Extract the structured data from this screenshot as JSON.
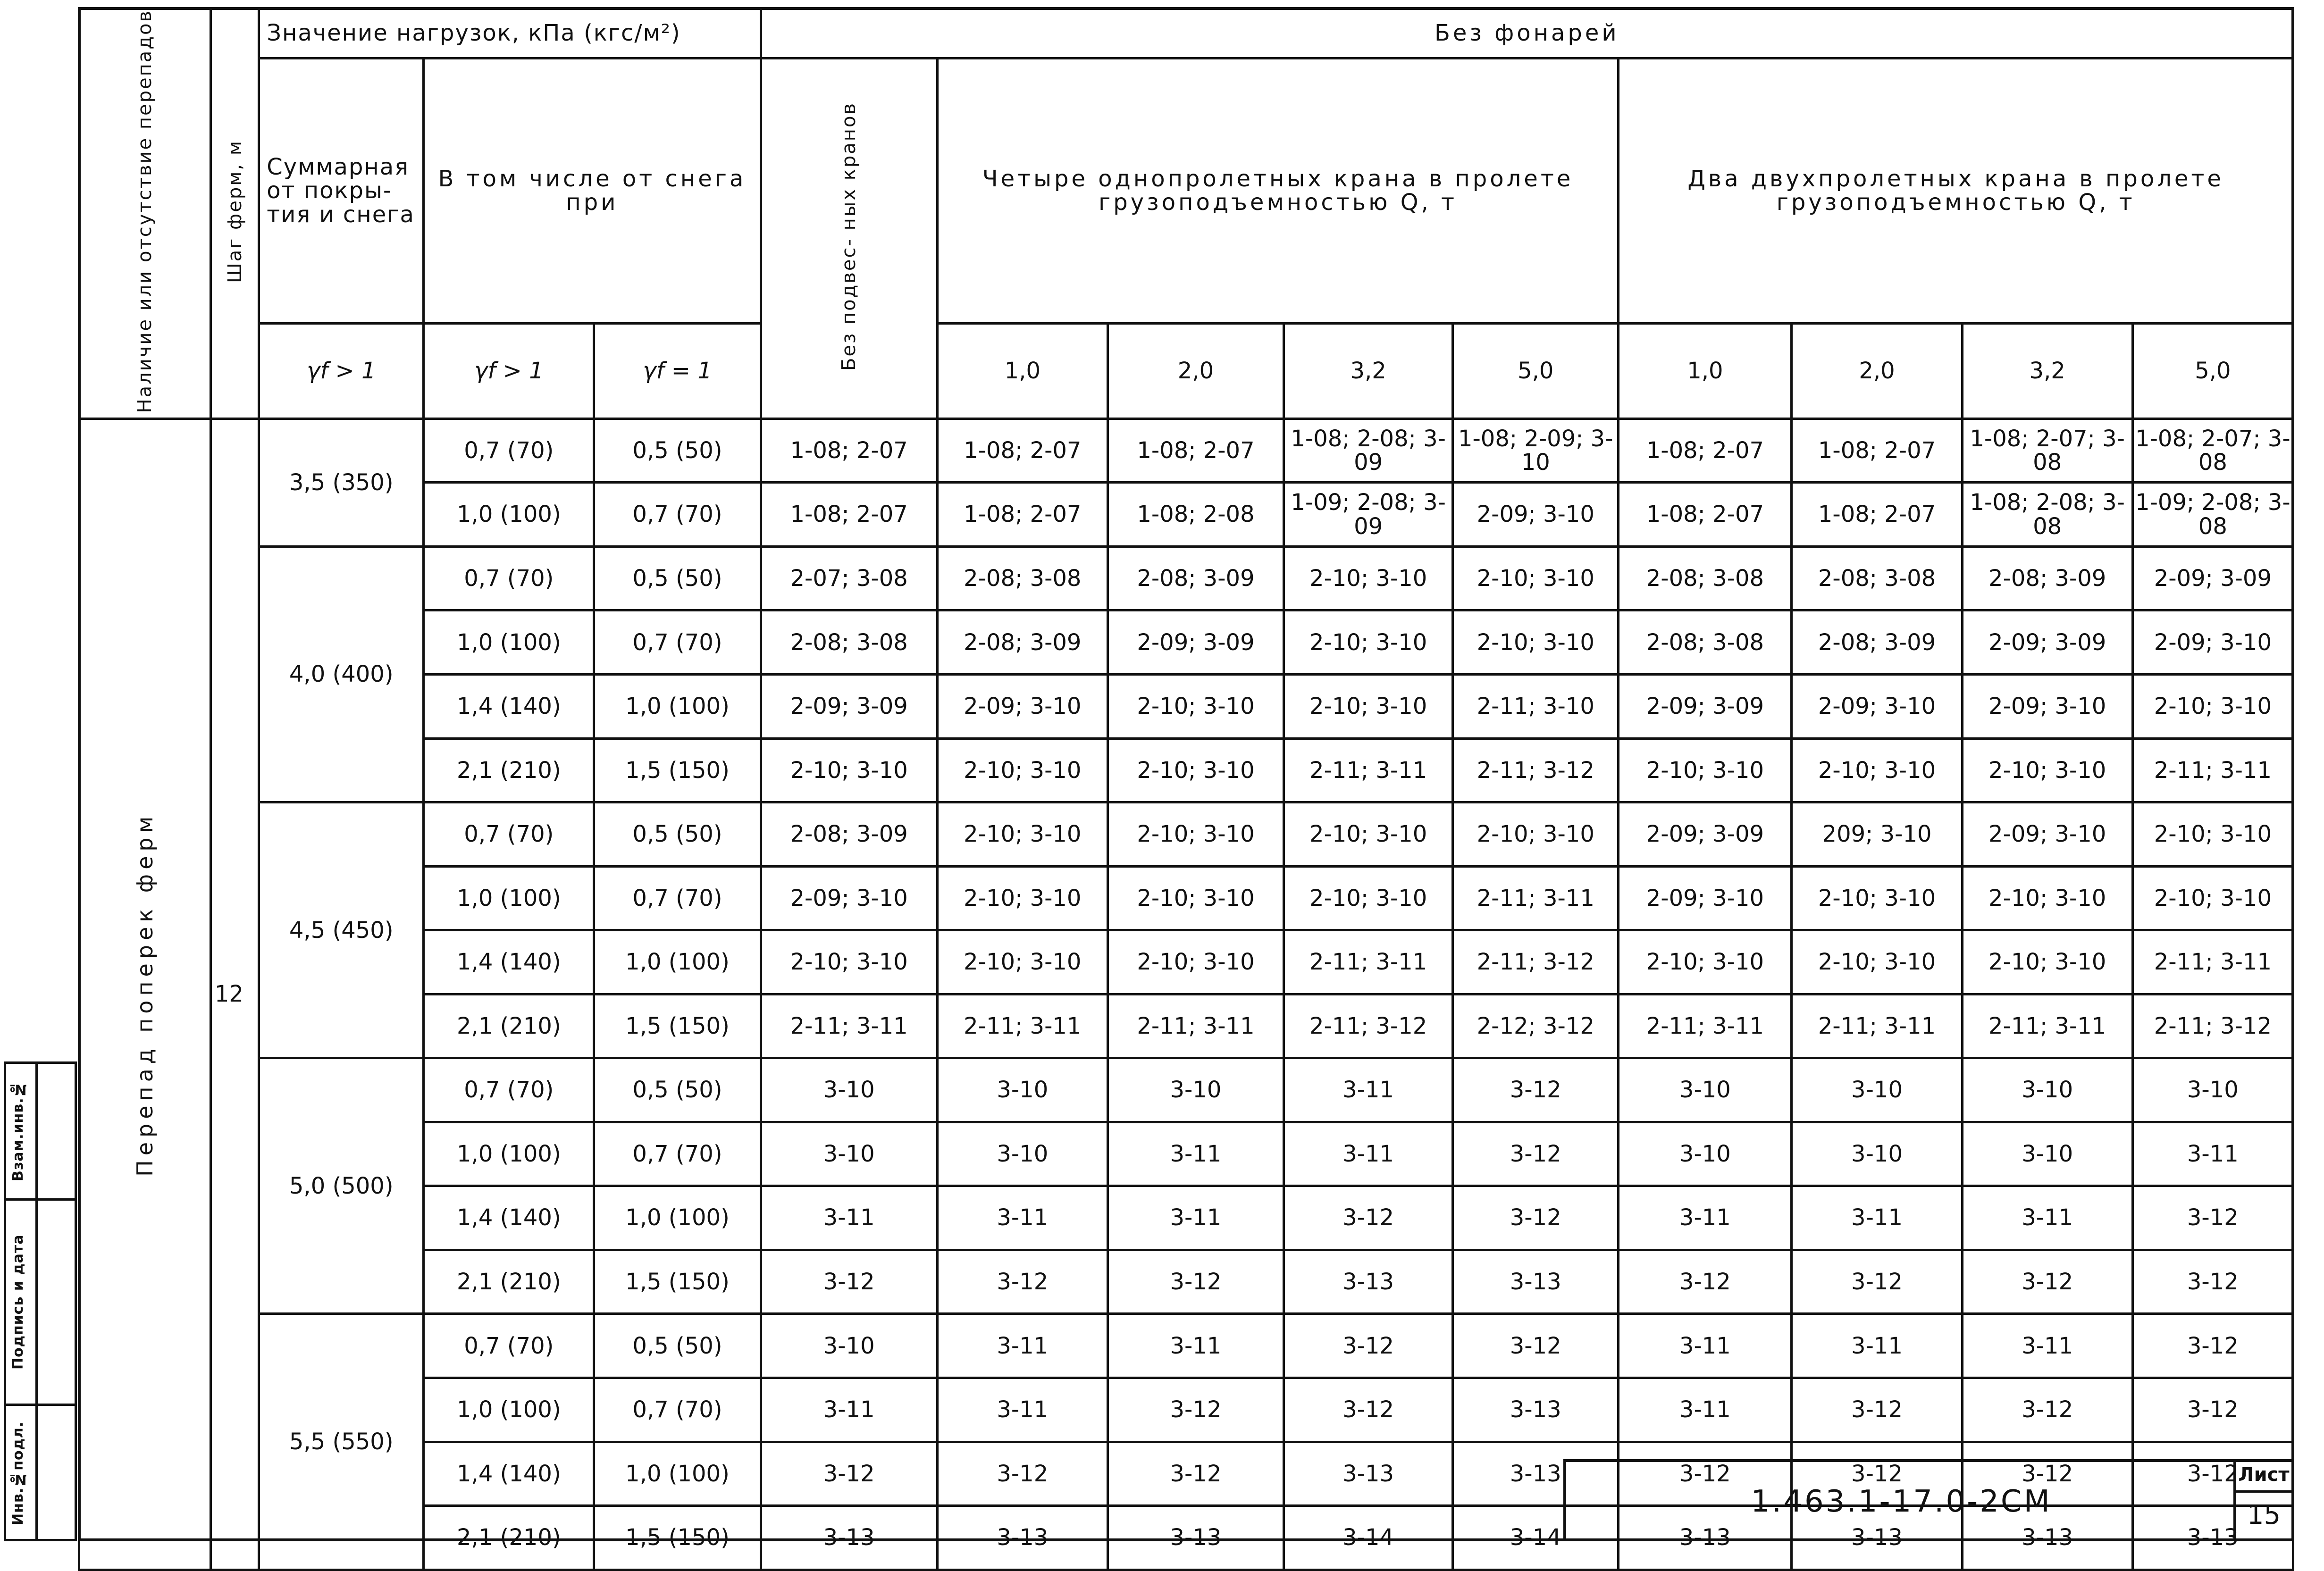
{
  "side_stamp": {
    "inv_podl": "Инв.№подл.",
    "podpis_data": "Подпись и дата",
    "vzam_inv": "Взам.инв.№"
  },
  "header": {
    "col_presence": "Наличие или отсутствие перепадов",
    "col_step": "Шаг ферм, м",
    "loads_title": "Значение нагрузок, кПа (кгс/м²)",
    "no_lanterns": "Без фонарей",
    "total": "Суммарная от покры- тия и снега",
    "incl_snow": "В том числе от снега при",
    "gamma_total": "γf > 1",
    "gamma_snow_gt": "γf > 1",
    "gamma_snow_eq": "γf = 1",
    "no_cranes": "Без подвес- ных кранов",
    "group_four": "Четыре однопролетных крана в пролете грузоподъемностью Q, т",
    "group_two": "Два двухпролетных крана в пролете грузоподъемностью Q, т",
    "capacities_four": [
      "1,0",
      "2,0",
      "3,2",
      "5,0"
    ],
    "capacities_two": [
      "1,0",
      "2,0",
      "3,2",
      "5,0"
    ]
  },
  "table": {
    "row_label": "Перепад поперек ферм",
    "step": "12",
    "groups": [
      {
        "total": "3,5 (350)",
        "rows": [
          {
            "gt": "0,7 (70)",
            "eq": "0,5 (50)",
            "cells": [
              "1-08; 2-07",
              "1-08; 2-07",
              "1-08; 2-07",
              "1-08; 2-08; 3-09",
              "1-08; 2-09; 3-10",
              "1-08; 2-07",
              "1-08; 2-07",
              "1-08; 2-07; 3-08",
              "1-08; 2-07; 3-08"
            ]
          },
          {
            "gt": "1,0 (100)",
            "eq": "0,7 (70)",
            "cells": [
              "1-08; 2-07",
              "1-08; 2-07",
              "1-08; 2-08",
              "1-09; 2-08; 3-09",
              "2-09; 3-10",
              "1-08; 2-07",
              "1-08; 2-07",
              "1-08; 2-08; 3-08",
              "1-09; 2-08; 3-08"
            ]
          }
        ]
      },
      {
        "total": "4,0 (400)",
        "rows": [
          {
            "gt": "0,7 (70)",
            "eq": "0,5 (50)",
            "cells": [
              "2-07; 3-08",
              "2-08; 3-08",
              "2-08; 3-09",
              "2-10; 3-10",
              "2-10; 3-10",
              "2-08; 3-08",
              "2-08; 3-08",
              "2-08; 3-09",
              "2-09; 3-09"
            ]
          },
          {
            "gt": "1,0 (100)",
            "eq": "0,7 (70)",
            "cells": [
              "2-08; 3-08",
              "2-08; 3-09",
              "2-09; 3-09",
              "2-10; 3-10",
              "2-10; 3-10",
              "2-08; 3-08",
              "2-08; 3-09",
              "2-09; 3-09",
              "2-09; 3-10"
            ]
          },
          {
            "gt": "1,4 (140)",
            "eq": "1,0 (100)",
            "cells": [
              "2-09; 3-09",
              "2-09; 3-10",
              "2-10; 3-10",
              "2-10; 3-10",
              "2-11; 3-10",
              "2-09; 3-09",
              "2-09; 3-10",
              "2-09; 3-10",
              "2-10; 3-10"
            ]
          },
          {
            "gt": "2,1 (210)",
            "eq": "1,5 (150)",
            "cells": [
              "2-10; 3-10",
              "2-10; 3-10",
              "2-10; 3-10",
              "2-11; 3-11",
              "2-11; 3-12",
              "2-10; 3-10",
              "2-10; 3-10",
              "2-10; 3-10",
              "2-11; 3-11"
            ]
          }
        ]
      },
      {
        "total": "4,5 (450)",
        "rows": [
          {
            "gt": "0,7 (70)",
            "eq": "0,5 (50)",
            "cells": [
              "2-08; 3-09",
              "2-10; 3-10",
              "2-10; 3-10",
              "2-10; 3-10",
              "2-10; 3-10",
              "2-09; 3-09",
              "209; 3-10",
              "2-09; 3-10",
              "2-10; 3-10"
            ]
          },
          {
            "gt": "1,0 (100)",
            "eq": "0,7 (70)",
            "cells": [
              "2-09; 3-10",
              "2-10; 3-10",
              "2-10; 3-10",
              "2-10; 3-10",
              "2-11; 3-11",
              "2-09; 3-10",
              "2-10; 3-10",
              "2-10; 3-10",
              "2-10; 3-10"
            ]
          },
          {
            "gt": "1,4 (140)",
            "eq": "1,0 (100)",
            "cells": [
              "2-10; 3-10",
              "2-10; 3-10",
              "2-10; 3-10",
              "2-11; 3-11",
              "2-11; 3-12",
              "2-10; 3-10",
              "2-10; 3-10",
              "2-10; 3-10",
              "2-11; 3-11"
            ]
          },
          {
            "gt": "2,1 (210)",
            "eq": "1,5 (150)",
            "cells": [
              "2-11; 3-11",
              "2-11; 3-11",
              "2-11; 3-11",
              "2-11; 3-12",
              "2-12; 3-12",
              "2-11; 3-11",
              "2-11; 3-11",
              "2-11; 3-11",
              "2-11; 3-12"
            ]
          }
        ]
      },
      {
        "total": "5,0 (500)",
        "rows": [
          {
            "gt": "0,7 (70)",
            "eq": "0,5 (50)",
            "cells": [
              "3-10",
              "3-10",
              "3-10",
              "3-11",
              "3-12",
              "3-10",
              "3-10",
              "3-10",
              "3-10"
            ]
          },
          {
            "gt": "1,0 (100)",
            "eq": "0,7 (70)",
            "cells": [
              "3-10",
              "3-10",
              "3-11",
              "3-11",
              "3-12",
              "3-10",
              "3-10",
              "3-10",
              "3-11"
            ]
          },
          {
            "gt": "1,4 (140)",
            "eq": "1,0 (100)",
            "cells": [
              "3-11",
              "3-11",
              "3-11",
              "3-12",
              "3-12",
              "3-11",
              "3-11",
              "3-11",
              "3-12"
            ]
          },
          {
            "gt": "2,1 (210)",
            "eq": "1,5 (150)",
            "cells": [
              "3-12",
              "3-12",
              "3-12",
              "3-13",
              "3-13",
              "3-12",
              "3-12",
              "3-12",
              "3-12"
            ]
          }
        ]
      },
      {
        "total": "5,5 (550)",
        "rows": [
          {
            "gt": "0,7 (70)",
            "eq": "0,5 (50)",
            "cells": [
              "3-10",
              "3-11",
              "3-11",
              "3-12",
              "3-12",
              "3-11",
              "3-11",
              "3-11",
              "3-12"
            ]
          },
          {
            "gt": "1,0 (100)",
            "eq": "0,7 (70)",
            "cells": [
              "3-11",
              "3-11",
              "3-12",
              "3-12",
              "3-13",
              "3-11",
              "3-12",
              "3-12",
              "3-12"
            ]
          },
          {
            "gt": "1,4 (140)",
            "eq": "1,0 (100)",
            "cells": [
              "3-12",
              "3-12",
              "3-12",
              "3-13",
              "3-13",
              "3-12",
              "3-12",
              "3-12",
              "3-12"
            ]
          },
          {
            "gt": "2,1 (210)",
            "eq": "1,5 (150)",
            "cells": [
              "3-13",
              "3-13",
              "3-13",
              "3-14",
              "3-14",
              "3-13",
              "3-13",
              "3-13",
              "3-13"
            ]
          }
        ]
      }
    ]
  },
  "title_block": {
    "code": "1.463.1-17.0-2СМ",
    "sheet_label": "Лист",
    "sheet_number": "15"
  }
}
